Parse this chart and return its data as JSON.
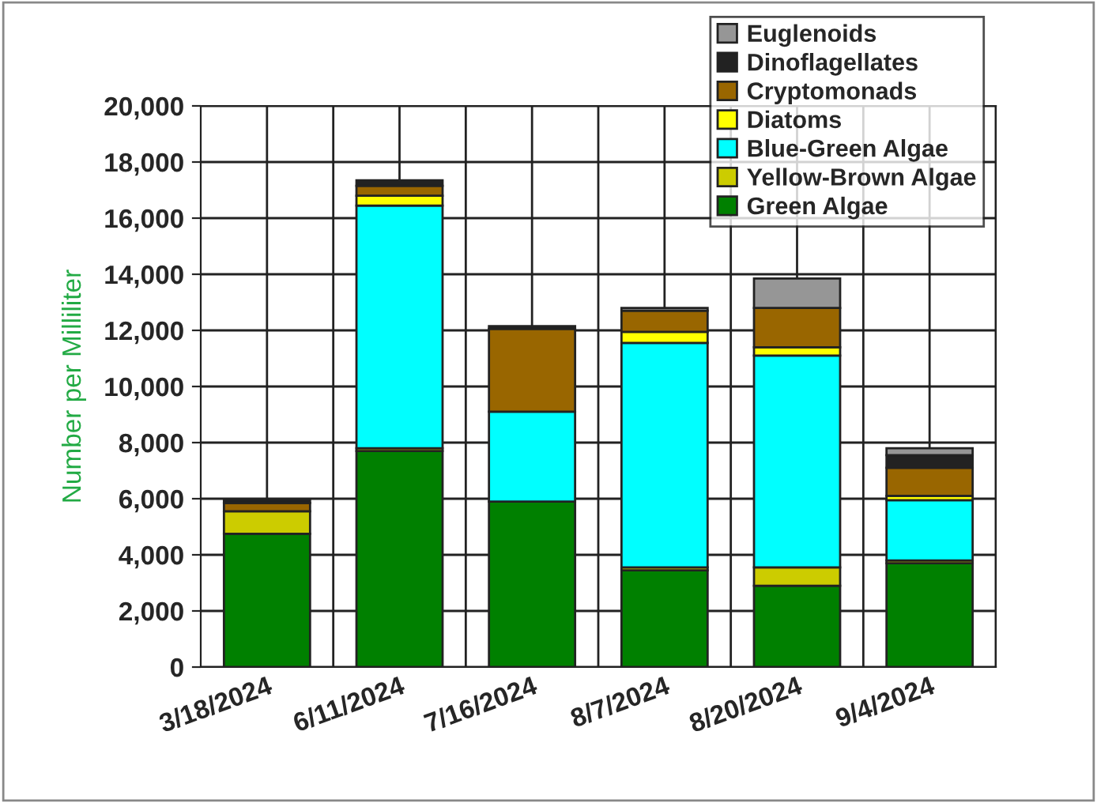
{
  "chart_data": {
    "type": "bar",
    "stacked": true,
    "ylabel": "Number per Milliliter",
    "categories": [
      "3/18/2024",
      "6/11/2024",
      "7/16/2024",
      "8/7/2024",
      "8/20/2024",
      "9/4/2024"
    ],
    "series": [
      {
        "name": "Green Algae",
        "color": "#008000",
        "values": [
          4750,
          7700,
          5900,
          3450,
          2900,
          3700
        ]
      },
      {
        "name": "Yellow-Brown Algae",
        "color": "#cccc00",
        "values": [
          800,
          100,
          null,
          100,
          650,
          100
        ]
      },
      {
        "name": "Blue-Green Algae",
        "color": "#00ffff",
        "values": [
          null,
          8650,
          3200,
          8000,
          7550,
          2150
        ]
      },
      {
        "name": "Diatoms",
        "color": "#ffff00",
        "values": [
          null,
          350,
          null,
          400,
          300,
          150
        ]
      },
      {
        "name": "Cryptomonads",
        "color": "#996600",
        "values": [
          300,
          350,
          2950,
          750,
          1400,
          1000
        ]
      },
      {
        "name": "Dinoflagellates",
        "color": "#222222",
        "values": [
          100,
          200,
          100,
          null,
          null,
          450
        ]
      },
      {
        "name": "Euglenoids",
        "color": "#969696",
        "values": [
          null,
          null,
          null,
          100,
          1050,
          250
        ]
      }
    ],
    "ylim": [
      0,
      20000
    ],
    "yticks": [
      {
        "value": 0,
        "label": "0"
      },
      {
        "value": 2000,
        "label": "2,000"
      },
      {
        "value": 4000,
        "label": "4,000"
      },
      {
        "value": 6000,
        "label": "6,000"
      },
      {
        "value": 8000,
        "label": "8,000"
      },
      {
        "value": 10000,
        "label": "10,000"
      },
      {
        "value": 12000,
        "label": "12,000"
      },
      {
        "value": 14000,
        "label": "14,000"
      },
      {
        "value": 16000,
        "label": "16,000"
      },
      {
        "value": 18000,
        "label": "18,000"
      },
      {
        "value": 20000,
        "label": "20,000"
      }
    ],
    "grid": true,
    "legend": "top right"
  }
}
